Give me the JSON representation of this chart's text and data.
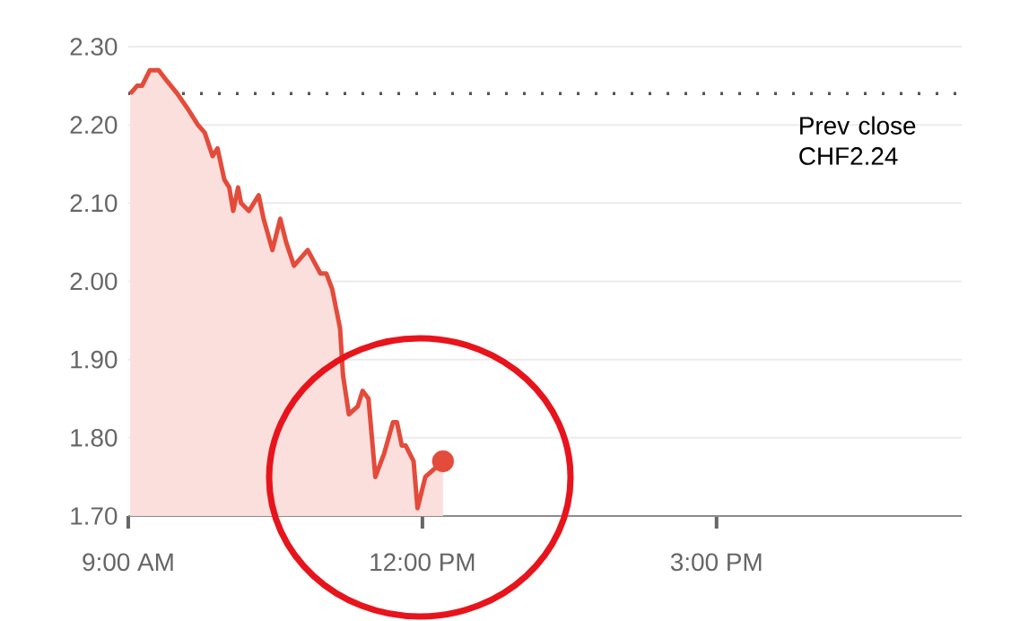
{
  "chart_data": {
    "type": "area",
    "xlim": [
      9,
      17.5
    ],
    "ylim": [
      1.7,
      2.3
    ],
    "xticks": [
      {
        "value": 9,
        "label": "9:00 AM"
      },
      {
        "value": 12,
        "label": "12:00 PM"
      },
      {
        "value": 15,
        "label": "3:00 PM"
      }
    ],
    "yticks": [
      {
        "value": 1.7,
        "label": "1.70"
      },
      {
        "value": 1.8,
        "label": "1.80"
      },
      {
        "value": 1.9,
        "label": "1.90"
      },
      {
        "value": 2.0,
        "label": "2.00"
      },
      {
        "value": 2.1,
        "label": "2.10"
      },
      {
        "value": 2.2,
        "label": "2.20"
      },
      {
        "value": 2.3,
        "label": "2.30"
      }
    ],
    "grid": "y",
    "ref_lines": [
      {
        "axis": "y",
        "value": 2.24,
        "label": "Prev close CHF2.24",
        "line_style": "dotted",
        "color": "#555555"
      }
    ],
    "series": [
      {
        "type": "area",
        "color": "#e34b3b",
        "x": [
          9.02,
          9.09,
          9.14,
          9.22,
          9.31,
          9.37,
          9.5,
          9.61,
          9.71,
          9.78,
          9.86,
          9.91,
          9.98,
          10.03,
          10.07,
          10.12,
          10.15,
          10.23,
          10.33,
          10.38,
          10.47,
          10.55,
          10.61,
          10.69,
          10.83,
          10.96,
          11.02,
          11.08,
          11.16,
          11.19,
          11.25,
          11.34,
          11.39,
          11.45,
          11.52,
          11.61,
          11.7,
          11.74,
          11.79,
          11.83,
          11.91,
          11.95,
          12.03,
          12.12,
          12.21
        ],
        "values": [
          2.24,
          2.25,
          2.25,
          2.27,
          2.27,
          2.26,
          2.24,
          2.22,
          2.2,
          2.19,
          2.16,
          2.17,
          2.13,
          2.12,
          2.09,
          2.12,
          2.1,
          2.09,
          2.11,
          2.08,
          2.04,
          2.08,
          2.05,
          2.02,
          2.04,
          2.01,
          2.01,
          1.99,
          1.94,
          1.88,
          1.83,
          1.84,
          1.86,
          1.85,
          1.75,
          1.78,
          1.82,
          1.82,
          1.79,
          1.79,
          1.77,
          1.71,
          1.75,
          1.76,
          1.77
        ]
      },
      {
        "type": "scatter",
        "color": "#e34b3b",
        "x": [
          12.21
        ],
        "values": [
          1.77
        ]
      }
    ]
  }
}
